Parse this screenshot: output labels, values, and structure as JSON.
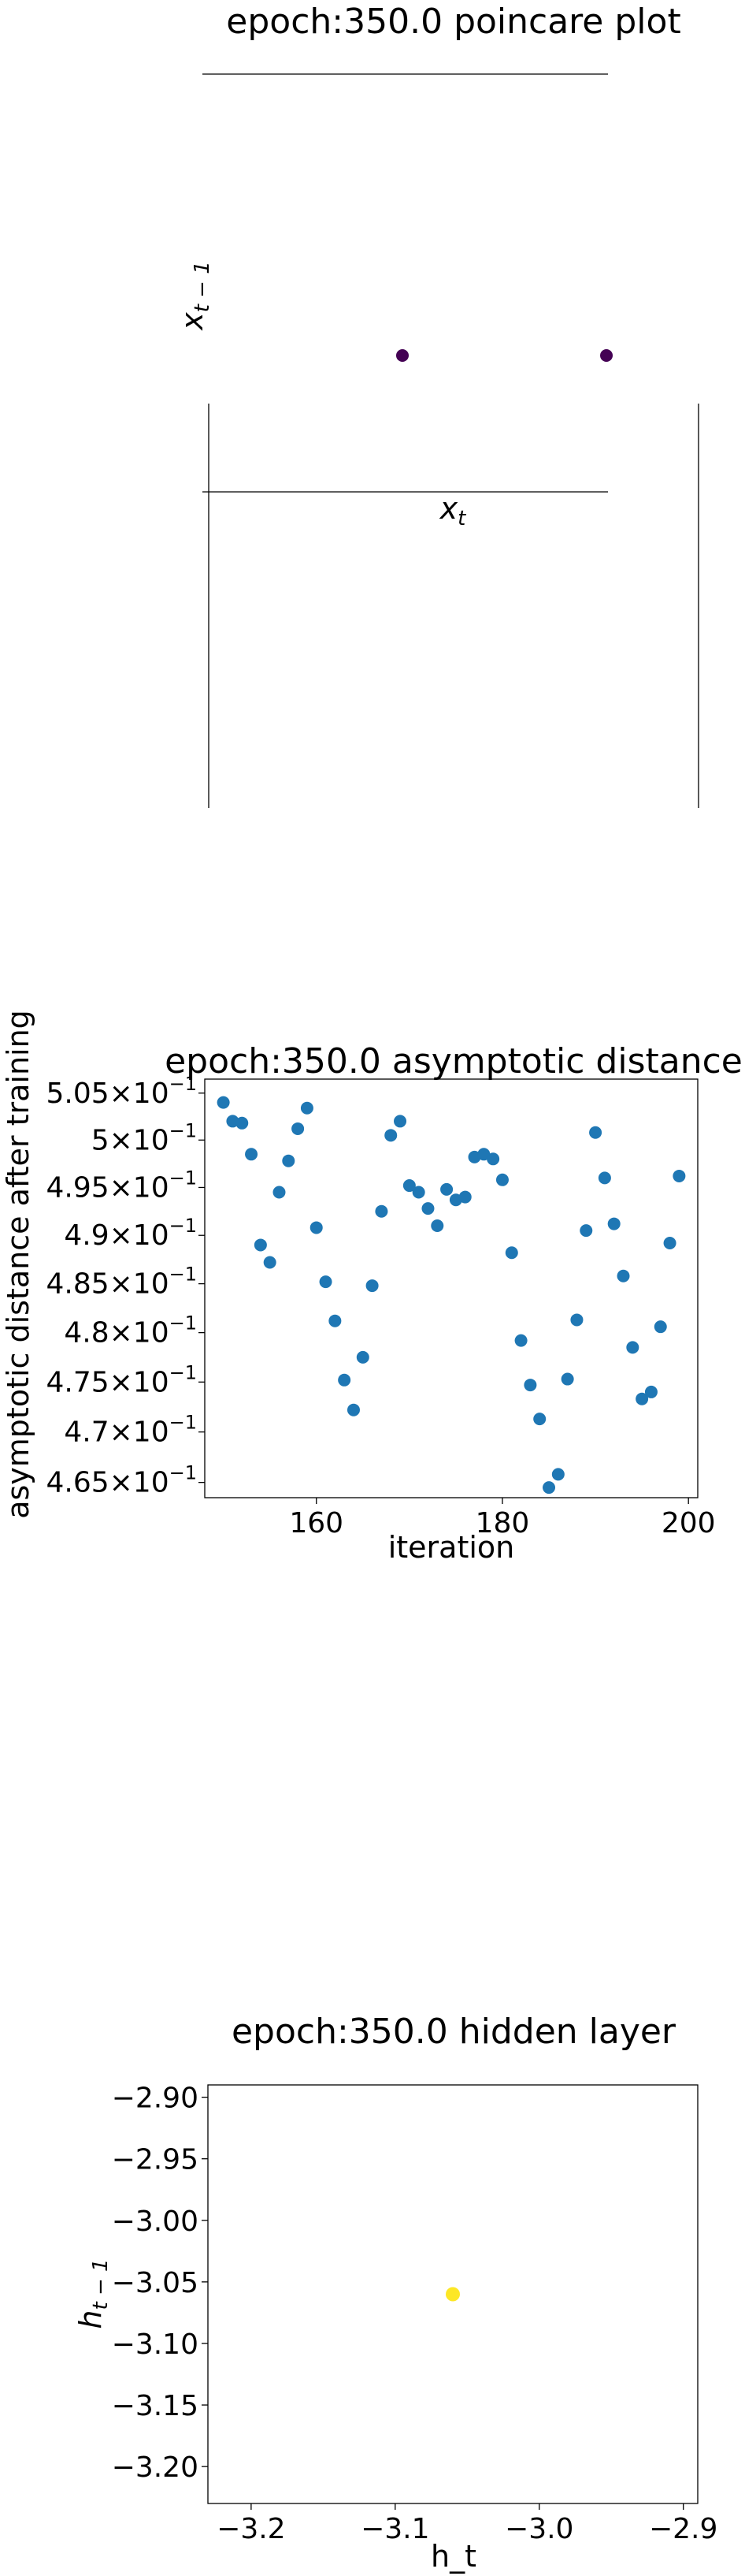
{
  "chart_data": [
    {
      "type": "scatter",
      "title": "epoch:350.0 poincare plot",
      "xlabel": "x_t",
      "ylabel": "x_{t-1}",
      "points": [
        {
          "x": 0,
          "y": 0
        },
        {
          "x": 1,
          "y": 0
        }
      ],
      "point_color": "#440154",
      "grid": false
    },
    {
      "type": "scatter",
      "title": "epoch:350.0 asymptotic distance",
      "xlabel": "iteration",
      "ylabel": "asymptotic distance after training",
      "yscale": "log",
      "xlim": [
        148,
        201
      ],
      "ylim": [
        0.4635,
        0.5065
      ],
      "xticks": [
        "160",
        "180",
        "200"
      ],
      "xtick_values": [
        160,
        180,
        200
      ],
      "yticks": [
        {
          "mantissa": "4.65",
          "value": 0.465
        },
        {
          "mantissa": "4.7",
          "value": 0.47
        },
        {
          "mantissa": "4.75",
          "value": 0.475
        },
        {
          "mantissa": "4.8",
          "value": 0.48
        },
        {
          "mantissa": "4.85",
          "value": 0.485
        },
        {
          "mantissa": "4.9",
          "value": 0.49
        },
        {
          "mantissa": "4.95",
          "value": 0.495
        },
        {
          "mantissa": "5",
          "value": 0.5
        },
        {
          "mantissa": "5.05",
          "value": 0.505
        }
      ],
      "ytick_suffix": "×10",
      "ytick_exponent": "−1",
      "point_color": "#1f77b4",
      "x": [
        150,
        151,
        152,
        153,
        154,
        155,
        156,
        157,
        158,
        159,
        160,
        161,
        162,
        163,
        164,
        165,
        166,
        167,
        168,
        169,
        170,
        171,
        172,
        173,
        174,
        175,
        176,
        177,
        178,
        179,
        180,
        181,
        182,
        183,
        184,
        185,
        186,
        187,
        188,
        189,
        190,
        191,
        192,
        193,
        194,
        195,
        196,
        197,
        198,
        199
      ],
      "y": [
        0.504,
        0.502,
        0.5018,
        0.4985,
        0.489,
        0.4872,
        0.4945,
        0.4978,
        0.5012,
        0.5034,
        0.4908,
        0.4852,
        0.4812,
        0.4752,
        0.4722,
        0.4775,
        0.4848,
        0.4925,
        0.5005,
        0.502,
        0.4952,
        0.4945,
        0.4928,
        0.491,
        0.4948,
        0.4937,
        0.494,
        0.4982,
        0.4985,
        0.498,
        0.4958,
        0.4882,
        0.4792,
        0.4747,
        0.4713,
        0.4645,
        0.4658,
        0.4753,
        0.4813,
        0.4905,
        0.5008,
        0.496,
        0.4912,
        0.4858,
        0.4785,
        0.4733,
        0.474,
        0.4806,
        0.4892,
        0.4962
      ],
      "grid": false
    },
    {
      "type": "scatter",
      "title": "epoch:350.0 hidden layer",
      "xlabel": "h_t",
      "ylabel": "h_{t-1}",
      "xlim": [
        -3.23,
        -2.89
      ],
      "ylim": [
        -3.23,
        -2.89
      ],
      "xticks": [
        "−3.2",
        "−3.1",
        "−3.0",
        "−2.9"
      ],
      "xtick_values": [
        -3.2,
        -3.1,
        -3.0,
        -2.9
      ],
      "yticks": [
        "−2.90",
        "−2.95",
        "−3.00",
        "−3.05",
        "−3.10",
        "−3.15",
        "−3.20"
      ],
      "ytick_values": [
        -2.9,
        -2.95,
        -3.0,
        -3.05,
        -3.1,
        -3.15,
        -3.2
      ],
      "points": [
        {
          "x": -3.06,
          "y": -3.06
        }
      ],
      "point_color": "#fde725",
      "grid": false
    }
  ]
}
